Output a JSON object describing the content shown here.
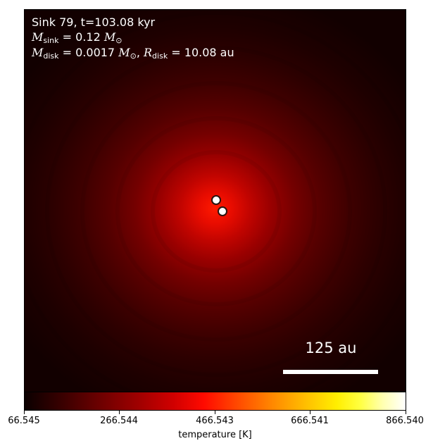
{
  "title": "Sink 79, t=103.08 kyr",
  "sink_mass": {
    "symbol": "M",
    "subscript": "sink",
    "value": "= 0.12",
    "unit_symbol": "M",
    "unit_subscript": "⊙"
  },
  "disk": {
    "mass_symbol": "M",
    "mass_subscript": "disk",
    "mass_value": "= 0.0017",
    "mass_unit_symbol": "M",
    "mass_unit_subscript": "⊙",
    "separator": ",",
    "radius_symbol": "R",
    "radius_subscript": "disk",
    "radius_value": "= 10.08",
    "radius_unit": "au"
  },
  "scale_bar": {
    "label": "125 au"
  },
  "colorbar": {
    "label": "temperature [K]",
    "tick_labels": [
      "66.545",
      "266.544",
      "466.543",
      "666.541",
      "866.540"
    ],
    "colormap": "hot"
  },
  "colors": {
    "sink_marker_fill": "#ffffff",
    "sink_marker_edge": "#2a1410",
    "text": "#ffffff"
  }
}
